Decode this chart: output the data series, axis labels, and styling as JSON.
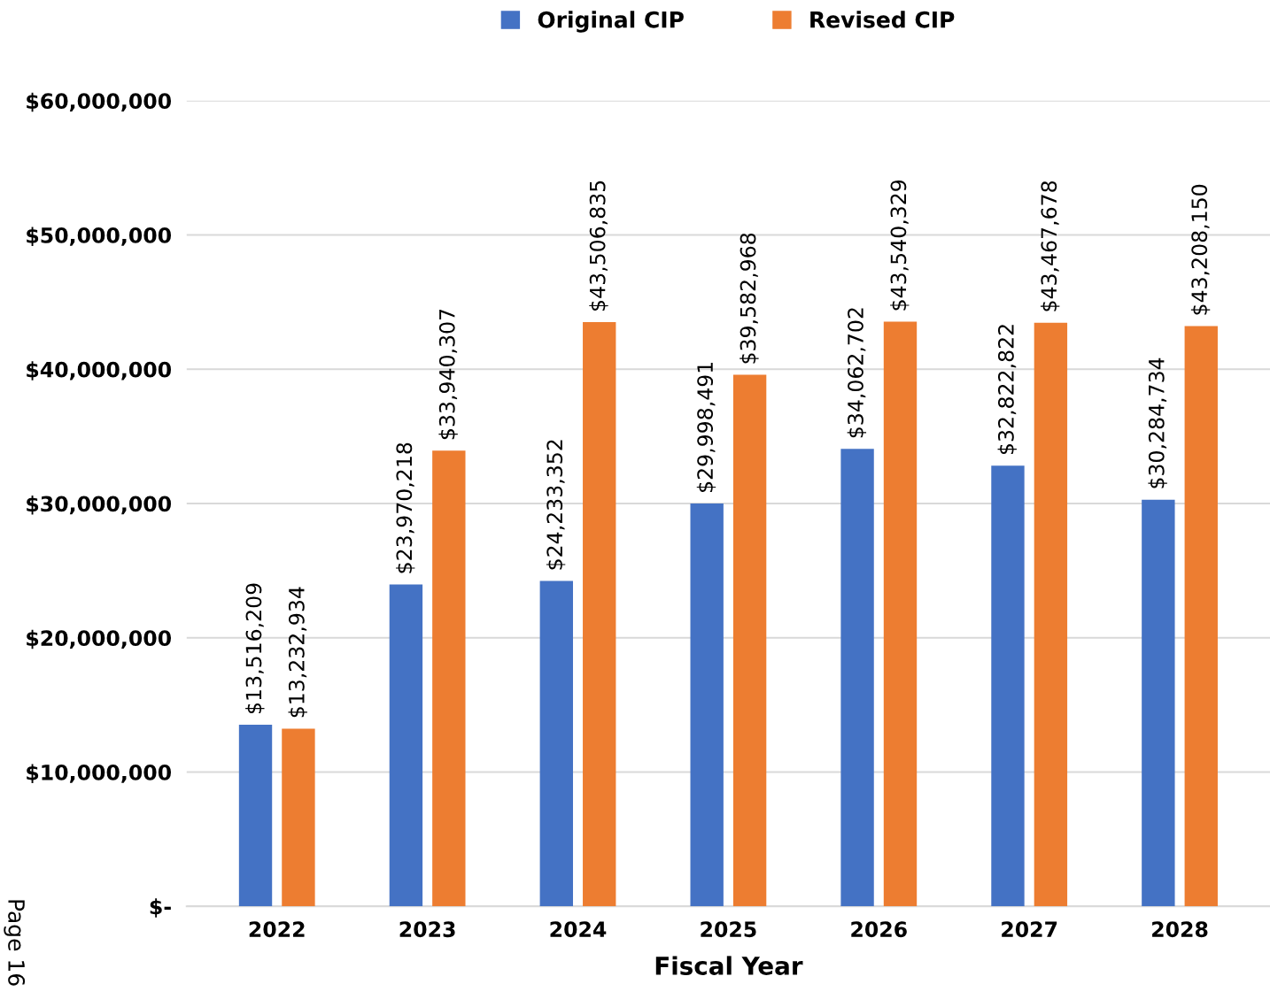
{
  "chart_data": {
    "type": "bar",
    "xlabel": "Fiscal Year",
    "categories": [
      "2022",
      "2023",
      "2024",
      "2025",
      "2026",
      "2027",
      "2028"
    ],
    "series": [
      {
        "name": "Original CIP",
        "color": "#4472c4",
        "values": [
          13516209,
          23970218,
          24233352,
          29998491,
          34062702,
          32822822,
          30284734
        ],
        "value_labels": [
          "$13,516,209",
          "$23,970,218",
          "$24,233,352",
          "$29,998,491",
          "$34,062,702",
          "$32,822,822",
          "$30,284,734"
        ]
      },
      {
        "name": "Revised CIP",
        "color": "#ed7d31",
        "values": [
          13232934,
          33940307,
          43506835,
          39582968,
          43540329,
          43467678,
          43208150
        ],
        "value_labels": [
          "$13,232,934",
          "$33,940,307",
          "$43,506,835",
          "$39,582,968",
          "$43,540,329",
          "$43,467,678",
          "$43,208,150"
        ]
      }
    ],
    "ylim": [
      0,
      60000000
    ],
    "yticks": [
      {
        "value": 0,
        "label": "$-"
      },
      {
        "value": 10000000,
        "label": "$10,000,000"
      },
      {
        "value": 20000000,
        "label": "$20,000,000"
      },
      {
        "value": 30000000,
        "label": "$30,000,000"
      },
      {
        "value": 40000000,
        "label": "$40,000,000"
      },
      {
        "value": 50000000,
        "label": "$50,000,000"
      },
      {
        "value": 60000000,
        "label": "$60,000,000"
      }
    ],
    "grid": "y",
    "legend": "top",
    "annotations": [
      "Page 16"
    ]
  }
}
